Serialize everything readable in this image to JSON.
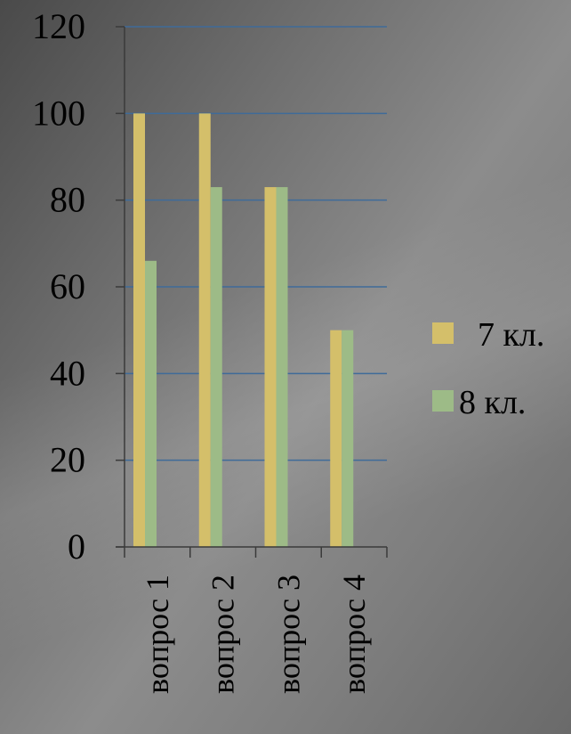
{
  "chart_data": {
    "type": "bar",
    "title": "",
    "xlabel": "",
    "ylabel": "",
    "categories": [
      "вопрос 1",
      "вопрос 2",
      "вопрос 3",
      "вопрос 4"
    ],
    "series": [
      {
        "name": "7 кл.",
        "values": [
          100,
          100,
          83,
          50
        ],
        "color": "#d4bf6a"
      },
      {
        "name": "8 кл.",
        "values": [
          66,
          83,
          83,
          50
        ],
        "color": "#9dbb87"
      }
    ],
    "ylim": [
      0,
      120
    ],
    "yticks": [
      "0",
      "20",
      "40",
      "60",
      "80",
      "100",
      "120"
    ],
    "grid": true,
    "legend": "right",
    "gridline_color": "#3f6b99",
    "axis_color": "#3a3a3a"
  }
}
